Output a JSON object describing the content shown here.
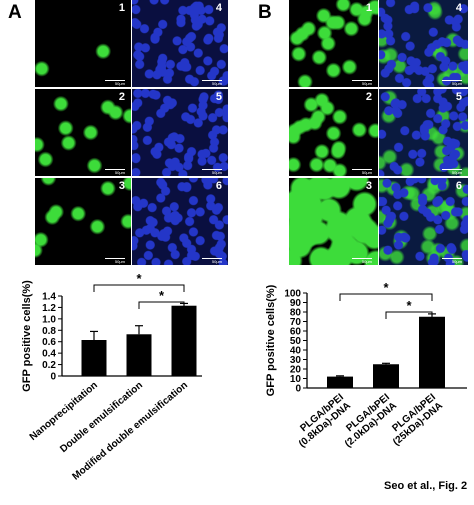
{
  "panel_labels": {
    "a": "A",
    "b": "B"
  },
  "micrographs": {
    "a": [
      {
        "num": "1",
        "channel": "green",
        "density": "very-low",
        "scale": "50μm"
      },
      {
        "num": "4",
        "channel": "blue",
        "density": "high",
        "scale": "50μm"
      },
      {
        "num": "2",
        "channel": "green",
        "density": "low",
        "scale": "50μm"
      },
      {
        "num": "5",
        "channel": "blue",
        "density": "high",
        "scale": "50μm"
      },
      {
        "num": "3",
        "channel": "green",
        "density": "low",
        "scale": "50μm"
      },
      {
        "num": "6",
        "channel": "blue",
        "density": "high",
        "scale": "50μm"
      }
    ],
    "b": [
      {
        "num": "1",
        "channel": "green",
        "density": "medium",
        "scale": "50μm"
      },
      {
        "num": "4",
        "channel": "merge",
        "density": "medium",
        "scale": "50μm"
      },
      {
        "num": "2",
        "channel": "green",
        "density": "medium",
        "scale": "50μm"
      },
      {
        "num": "5",
        "channel": "merge",
        "density": "medium",
        "scale": "50μm"
      },
      {
        "num": "3",
        "channel": "green",
        "density": "high",
        "scale": "50μm"
      },
      {
        "num": "6",
        "channel": "merge",
        "density": "high",
        "scale": "50μm"
      }
    ]
  },
  "colors": {
    "green": "#3ddc3a",
    "blue": "#2436c8",
    "black": "#000000",
    "bar": "#000000"
  },
  "chart_data": [
    {
      "type": "bar",
      "categories": [
        "Nanoprecipitation",
        "Double emulsification",
        "Modified double emulsification"
      ],
      "values": [
        0.63,
        0.73,
        1.23
      ],
      "errors": [
        0.15,
        0.15,
        0.04
      ],
      "ylabel": "GFP positive cells(%)",
      "ylim": [
        0,
        1.4
      ],
      "yticks": [
        "0",
        "0.2",
        "0.4",
        "0.6",
        "0.8",
        "1.0",
        "1.2",
        "1.4"
      ],
      "significance": [
        {
          "from": 0,
          "to": 2,
          "label": "*"
        },
        {
          "from": 1,
          "to": 2,
          "label": "*"
        }
      ]
    },
    {
      "type": "bar",
      "categories": [
        "PLGA/bPEI (0.8kDa)-DNA",
        "PLGA/bPEI (2.0kDa)-DNA",
        "PLGA/bPEI (25kDa)-DNA"
      ],
      "values": [
        12,
        25,
        75
      ],
      "errors": [
        0.8,
        1,
        3
      ],
      "ylabel": "GFP positive cells(%)",
      "ylim": [
        0,
        100
      ],
      "yticks": [
        "0",
        "10",
        "20",
        "30",
        "40",
        "50",
        "60",
        "70",
        "80",
        "90",
        "100"
      ],
      "significance": [
        {
          "from": 0,
          "to": 2,
          "label": "*"
        },
        {
          "from": 1,
          "to": 2,
          "label": "*"
        }
      ]
    }
  ],
  "credit": "Seo et al., Fig. 2"
}
